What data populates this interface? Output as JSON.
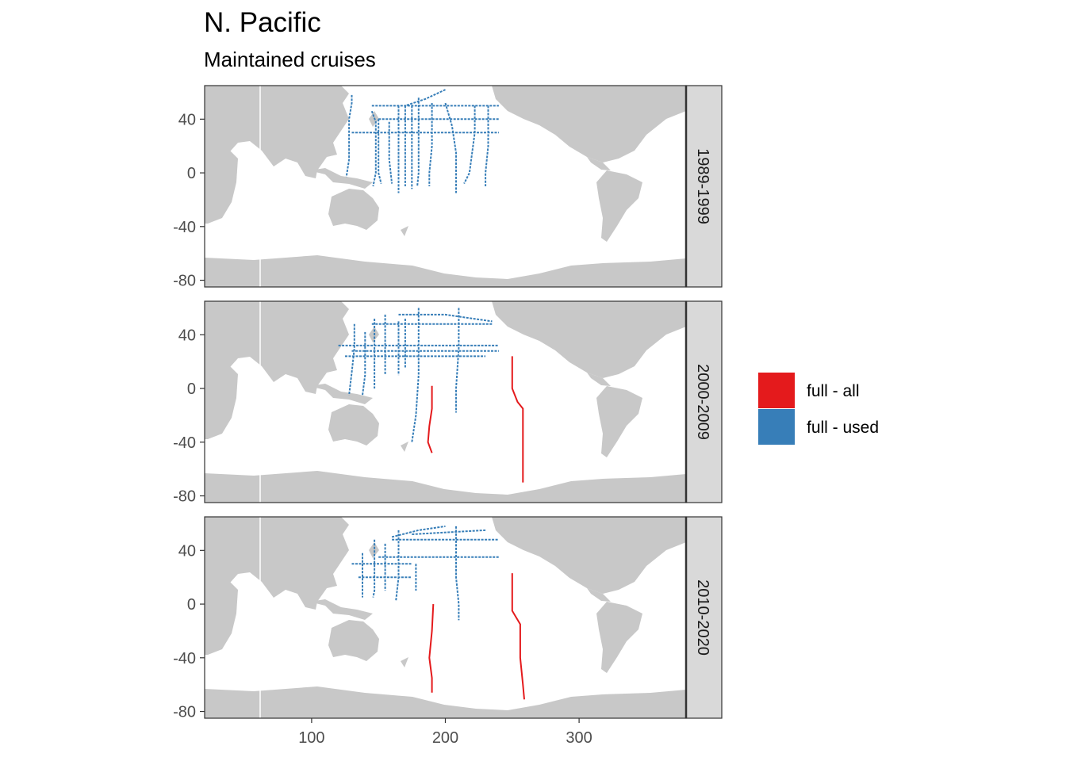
{
  "title": "N. Pacific",
  "subtitle": "Maintained cruises",
  "colors": {
    "land": "#c8c8c8",
    "ocean": "#ffffff",
    "panel_border": "#333333",
    "strip_fill": "#d9d9d9",
    "full_all": "#e41a1c",
    "full_used": "#377eb8"
  },
  "x_axis": {
    "ticks": [
      100,
      200,
      300
    ],
    "labels": [
      "100",
      "200",
      "300"
    ],
    "range": [
      20,
      380
    ]
  },
  "y_axis": {
    "ticks": [
      40,
      0,
      -40,
      -80
    ],
    "labels": [
      "40",
      "0",
      "-40",
      "-80"
    ],
    "range": [
      -85,
      65
    ]
  },
  "legend": {
    "entries": [
      {
        "label": "full - all",
        "color": "#e41a1c"
      },
      {
        "label": "full - used",
        "color": "#377eb8"
      }
    ]
  },
  "panels": [
    {
      "strip": "1989-1999",
      "tracks": [
        {
          "type": "full - used",
          "points": [
            [
              130,
              58
            ],
            [
              130,
              52
            ],
            [
              128,
              40
            ],
            [
              128,
              10
            ],
            [
              126,
              -3
            ]
          ]
        },
        {
          "type": "full - used",
          "points": [
            [
              145,
              46
            ],
            [
              148,
              38
            ],
            [
              148,
              0
            ],
            [
              146,
              -10
            ]
          ]
        },
        {
          "type": "full - used",
          "points": [
            [
              150,
              40
            ],
            [
              150,
              0
            ],
            [
              152,
              -8
            ]
          ]
        },
        {
          "type": "full - used",
          "points": [
            [
              158,
              38
            ],
            [
              158,
              10
            ],
            [
              160,
              -8
            ]
          ]
        },
        {
          "type": "full - used",
          "points": [
            [
              165,
              50
            ],
            [
              165,
              0
            ],
            [
              165,
              -15
            ]
          ]
        },
        {
          "type": "full - used",
          "points": [
            [
              170,
              50
            ],
            [
              170,
              -10
            ]
          ]
        },
        {
          "type": "full - used",
          "points": [
            [
              175,
              50
            ],
            [
              175,
              0
            ],
            [
              175,
              -12
            ]
          ]
        },
        {
          "type": "full - used",
          "points": [
            [
              180,
              56
            ],
            [
              180,
              0
            ],
            [
              179,
              -10
            ]
          ]
        },
        {
          "type": "full - used",
          "points": [
            [
              190,
              52
            ],
            [
              190,
              20
            ],
            [
              188,
              0
            ],
            [
              188,
              -10
            ]
          ]
        },
        {
          "type": "full - used",
          "points": [
            [
              200,
              52
            ],
            [
              205,
              35
            ],
            [
              208,
              15
            ],
            [
              208,
              -15
            ]
          ]
        },
        {
          "type": "full - used",
          "points": [
            [
              222,
              50
            ],
            [
              222,
              30
            ],
            [
              218,
              0
            ],
            [
              214,
              -8
            ]
          ]
        },
        {
          "type": "full - used",
          "points": [
            [
              232,
              50
            ],
            [
              232,
              20
            ],
            [
              230,
              0
            ],
            [
              230,
              -10
            ]
          ]
        },
        {
          "type": "full - used",
          "points": [
            [
              130,
              30
            ],
            [
              180,
              30
            ],
            [
              240,
              30
            ]
          ]
        },
        {
          "type": "full - used",
          "points": [
            [
              150,
              40
            ],
            [
              240,
              40
            ]
          ]
        },
        {
          "type": "full - used",
          "points": [
            [
              145,
              50
            ],
            [
              240,
              50
            ]
          ]
        },
        {
          "type": "full - used",
          "points": [
            [
              200,
              62
            ],
            [
              185,
              55
            ],
            [
              170,
              50
            ]
          ]
        }
      ]
    },
    {
      "strip": "2000-2009",
      "tracks": [
        {
          "type": "full - used",
          "points": [
            [
              132,
              48
            ],
            [
              132,
              30
            ],
            [
              130,
              12
            ],
            [
              128,
              -5
            ]
          ]
        },
        {
          "type": "full - used",
          "points": [
            [
              140,
              42
            ],
            [
              140,
              10
            ],
            [
              138,
              -5
            ]
          ]
        },
        {
          "type": "full - used",
          "points": [
            [
              147,
              52
            ],
            [
              147,
              10
            ],
            [
              147,
              0
            ]
          ]
        },
        {
          "type": "full - used",
          "points": [
            [
              155,
              55
            ],
            [
              155,
              15
            ],
            [
              155,
              10
            ]
          ]
        },
        {
          "type": "full - used",
          "points": [
            [
              165,
              50
            ],
            [
              165,
              20
            ],
            [
              165,
              10
            ]
          ]
        },
        {
          "type": "full - used",
          "points": [
            [
              170,
              52
            ],
            [
              170,
              15
            ]
          ]
        },
        {
          "type": "full - used",
          "points": [
            [
              180,
              60
            ],
            [
              180,
              30
            ],
            [
              180,
              10
            ],
            [
              178,
              -20
            ],
            [
              175,
              -40
            ]
          ]
        },
        {
          "type": "full - used",
          "points": [
            [
              210,
              60
            ],
            [
              210,
              30
            ],
            [
              208,
              0
            ],
            [
              208,
              -18
            ]
          ]
        },
        {
          "type": "full - used",
          "points": [
            [
              120,
              32
            ],
            [
              180,
              32
            ],
            [
              240,
              32
            ]
          ]
        },
        {
          "type": "full - used",
          "points": [
            [
              130,
              28
            ],
            [
              200,
              28
            ],
            [
              240,
              28
            ]
          ]
        },
        {
          "type": "full - used",
          "points": [
            [
              125,
              24
            ],
            [
              180,
              24
            ],
            [
              230,
              24
            ]
          ]
        },
        {
          "type": "full - used",
          "points": [
            [
              145,
              48
            ],
            [
              235,
              48
            ]
          ]
        },
        {
          "type": "full - used",
          "points": [
            [
              165,
              55
            ],
            [
              200,
              55
            ],
            [
              235,
              50
            ]
          ]
        },
        {
          "type": "full - all",
          "points": [
            [
              190,
              2
            ],
            [
              190,
              -15
            ],
            [
              188,
              -28
            ],
            [
              187,
              -40
            ],
            [
              190,
              -48
            ]
          ]
        },
        {
          "type": "full - all",
          "points": [
            [
              250,
              24
            ],
            [
              250,
              0
            ],
            [
              254,
              -10
            ],
            [
              258,
              -15
            ],
            [
              258,
              -40
            ],
            [
              258,
              -70
            ]
          ]
        }
      ]
    },
    {
      "strip": "2010-2020",
      "tracks": [
        {
          "type": "full - used",
          "points": [
            [
              138,
              38
            ],
            [
              138,
              10
            ],
            [
              138,
              5
            ]
          ]
        },
        {
          "type": "full - used",
          "points": [
            [
              147,
              48
            ],
            [
              147,
              10
            ],
            [
              146,
              5
            ]
          ]
        },
        {
          "type": "full - used",
          "points": [
            [
              155,
              45
            ],
            [
              155,
              20
            ],
            [
              155,
              10
            ]
          ]
        },
        {
          "type": "full - used",
          "points": [
            [
              165,
              55
            ],
            [
              165,
              20
            ],
            [
              163,
              2
            ]
          ]
        },
        {
          "type": "full - used",
          "points": [
            [
              178,
              30
            ],
            [
              178,
              10
            ]
          ]
        },
        {
          "type": "full - used",
          "points": [
            [
              208,
              58
            ],
            [
              208,
              20
            ],
            [
              210,
              0
            ],
            [
              210,
              -12
            ]
          ]
        },
        {
          "type": "full - used",
          "points": [
            [
              130,
              30
            ],
            [
              175,
              30
            ]
          ]
        },
        {
          "type": "full - used",
          "points": [
            [
              135,
              20
            ],
            [
              175,
              20
            ]
          ]
        },
        {
          "type": "full - used",
          "points": [
            [
              150,
              35
            ],
            [
              240,
              35
            ]
          ]
        },
        {
          "type": "full - used",
          "points": [
            [
              160,
              48
            ],
            [
              240,
              48
            ]
          ]
        },
        {
          "type": "full - used",
          "points": [
            [
              175,
              52
            ],
            [
              230,
              55
            ]
          ]
        },
        {
          "type": "full - used",
          "points": [
            [
              160,
              50
            ],
            [
              168,
              52
            ],
            [
              180,
              55
            ],
            [
              200,
              58
            ]
          ]
        },
        {
          "type": "full - all",
          "points": [
            [
              191,
              0
            ],
            [
              190,
              -20
            ],
            [
              188,
              -40
            ],
            [
              190,
              -55
            ],
            [
              190,
              -66
            ]
          ]
        },
        {
          "type": "full - all",
          "points": [
            [
              250,
              23
            ],
            [
              250,
              -5
            ],
            [
              256,
              -15
            ],
            [
              256,
              -40
            ],
            [
              258,
              -60
            ],
            [
              259,
              -71
            ]
          ]
        }
      ]
    }
  ]
}
